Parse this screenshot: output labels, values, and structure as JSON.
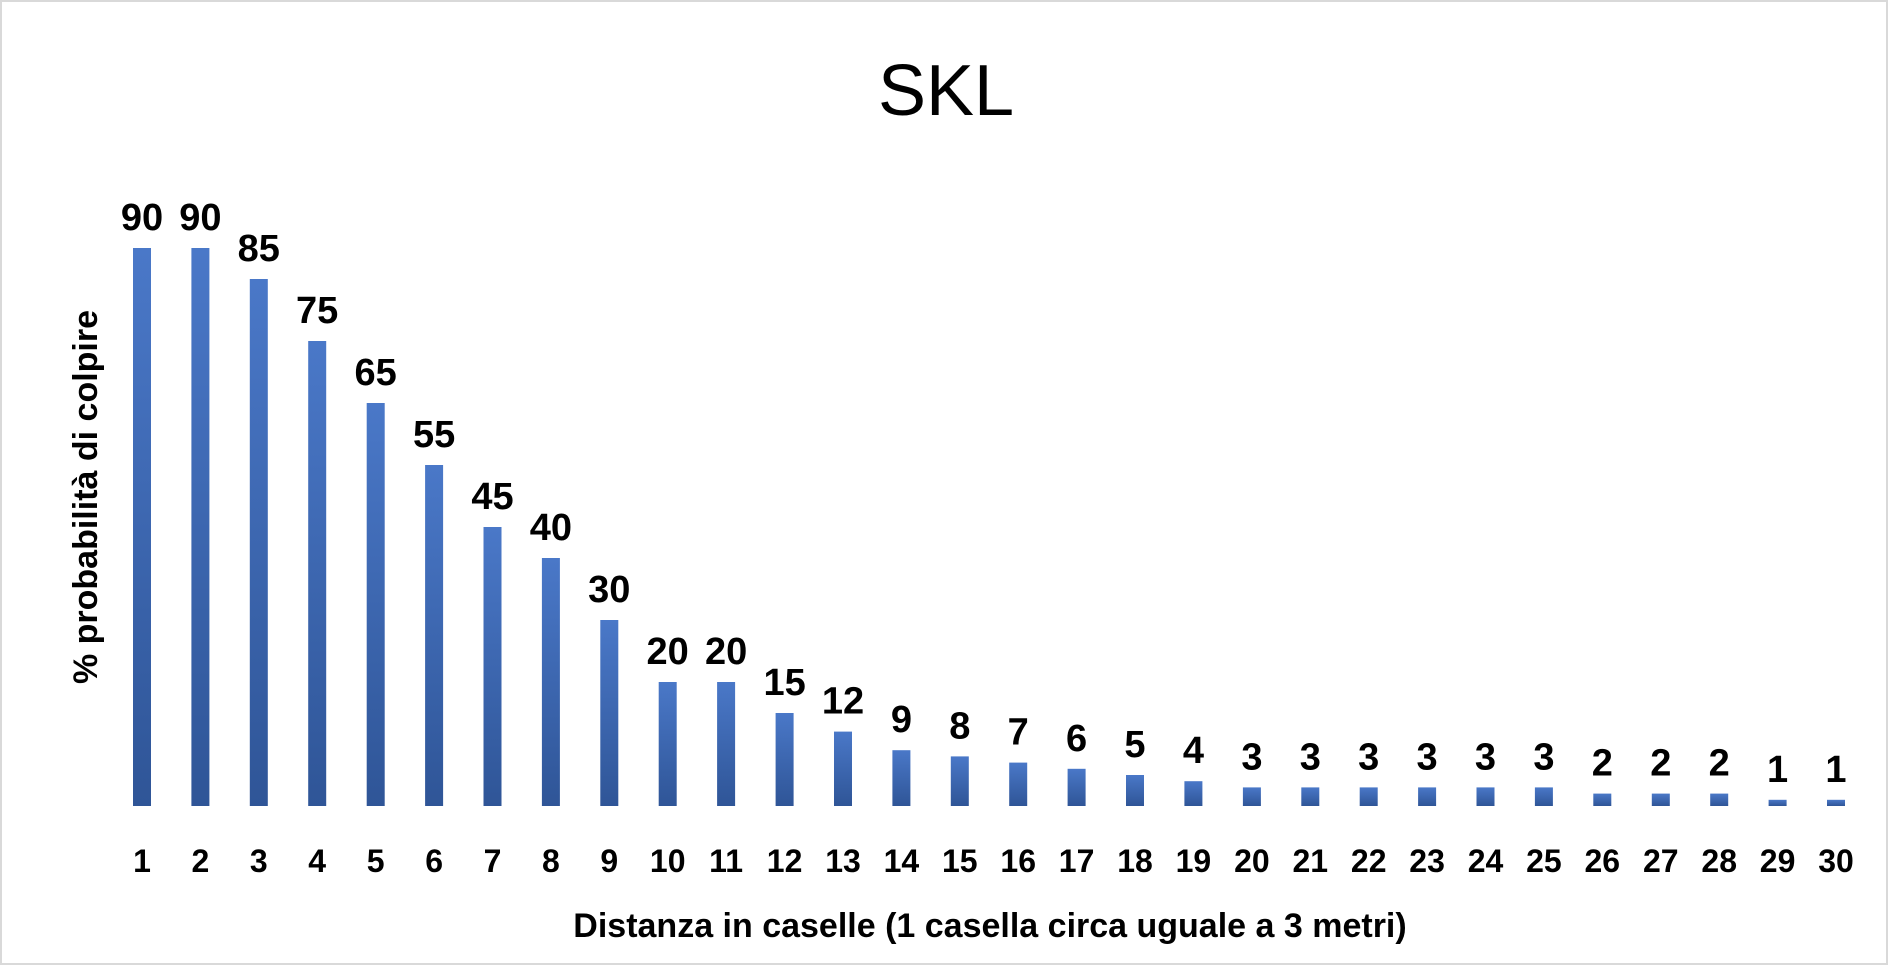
{
  "chart_data": {
    "type": "bar",
    "title": "SKL",
    "xlabel": "Distanza in caselle (1 casella circa uguale a 3 metri)",
    "ylabel": "% probabilità di colpire",
    "categories": [
      "1",
      "2",
      "3",
      "4",
      "5",
      "6",
      "7",
      "8",
      "9",
      "10",
      "11",
      "12",
      "13",
      "14",
      "15",
      "16",
      "17",
      "18",
      "19",
      "20",
      "21",
      "22",
      "23",
      "24",
      "25",
      "26",
      "27",
      "28",
      "29",
      "30"
    ],
    "values": [
      90,
      90,
      85,
      75,
      65,
      55,
      45,
      40,
      30,
      20,
      20,
      15,
      12,
      9,
      8,
      7,
      6,
      5,
      4,
      3,
      3,
      3,
      3,
      3,
      3,
      2,
      2,
      2,
      1,
      1
    ],
    "ylim": [
      0,
      90
    ],
    "grid": false,
    "legend": "none",
    "data_labels": true,
    "colors": {
      "bar_top": "#4a78c8",
      "bar_bottom": "#2f5597",
      "frame_border": "#d9d9d9"
    }
  }
}
